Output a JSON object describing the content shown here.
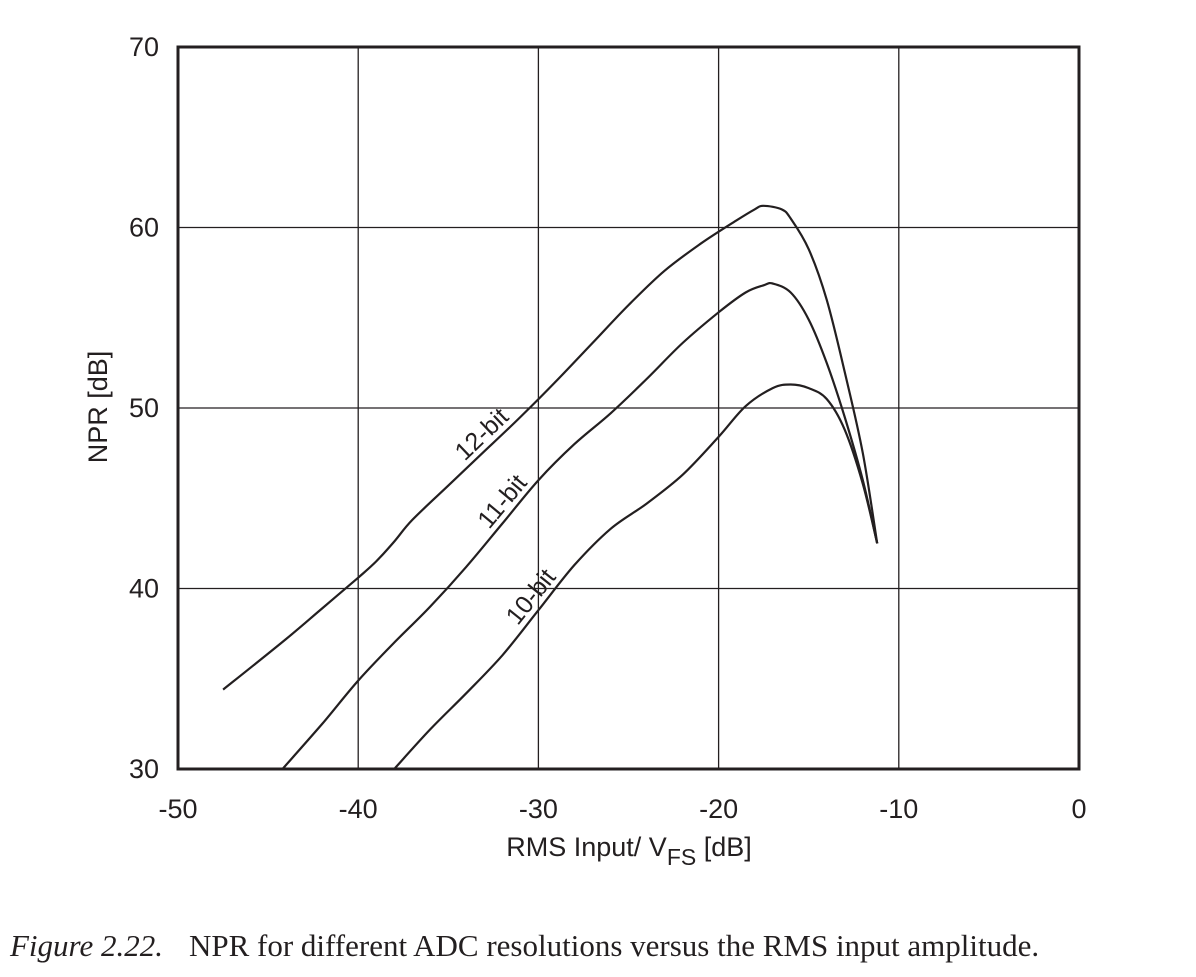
{
  "chart_data": {
    "type": "line",
    "xlabel": "RMS Input/ V",
    "xlabel_sub": "FS",
    "xlabel_unit": " [dB]",
    "ylabel": "NPR [dB]",
    "xlim": [
      -50,
      0
    ],
    "ylim": [
      30,
      70
    ],
    "xticks": [
      -50,
      -40,
      -30,
      -20,
      -10,
      0
    ],
    "yticks": [
      30,
      40,
      50,
      60,
      70
    ],
    "x_tick_labels": [
      "-50",
      "-40",
      "-30",
      "-20",
      "-10",
      "0"
    ],
    "y_tick_labels": [
      "30",
      "40",
      "50",
      "60",
      "70"
    ],
    "grid": true,
    "series": [
      {
        "name": "12-bit",
        "x": [
          -47.5,
          -44,
          -42,
          -40,
          -39,
          -38,
          -37,
          -35,
          -33,
          -31,
          -29,
          -27,
          -25,
          -23,
          -21,
          -19,
          -18,
          -17.5,
          -16.5,
          -16,
          -15,
          -14,
          -13,
          -12,
          -11.2
        ],
        "y": [
          34.4,
          37.2,
          38.9,
          40.6,
          41.5,
          42.6,
          43.8,
          45.7,
          47.6,
          49.5,
          51.5,
          53.6,
          55.7,
          57.6,
          59.1,
          60.4,
          61.0,
          61.2,
          61.0,
          60.5,
          58.8,
          56.0,
          52.0,
          47.5,
          42.5
        ]
      },
      {
        "name": "11-bit",
        "x": [
          -44.2,
          -42,
          -40,
          -38,
          -36,
          -34,
          -32,
          -30,
          -28,
          -26,
          -24,
          -22,
          -20,
          -18.5,
          -17.5,
          -17,
          -16,
          -15,
          -14,
          -13,
          -12,
          -11.2
        ],
        "y": [
          30.0,
          32.5,
          34.9,
          37.0,
          39.0,
          41.2,
          43.6,
          46.0,
          48.0,
          49.7,
          51.6,
          53.6,
          55.3,
          56.4,
          56.8,
          56.9,
          56.4,
          54.9,
          52.5,
          49.5,
          46.0,
          42.5
        ]
      },
      {
        "name": "10-bit",
        "x": [
          -38,
          -36,
          -34,
          -32,
          -30,
          -28,
          -26,
          -24,
          -22,
          -20,
          -18.5,
          -17,
          -16,
          -15,
          -14,
          -13,
          -12,
          -11.2
        ],
        "y": [
          30.0,
          32.2,
          34.2,
          36.3,
          38.8,
          41.3,
          43.3,
          44.7,
          46.3,
          48.4,
          50.1,
          51.1,
          51.3,
          51.1,
          50.5,
          48.8,
          45.8,
          42.5
        ]
      }
    ]
  },
  "caption": {
    "figure_number": "Figure 2.22.",
    "text": "NPR for different ADC resolutions versus the RMS input amplitude."
  }
}
